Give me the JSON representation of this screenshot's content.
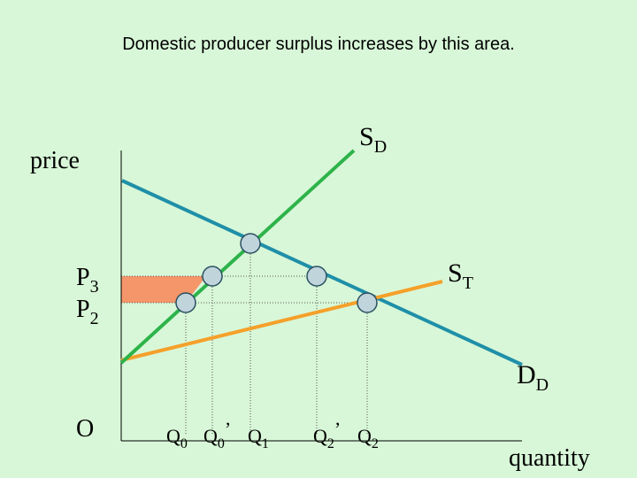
{
  "title": "Domestic producer surplus increases by this area.",
  "axes": {
    "y_label": "price",
    "x_label": "quantity",
    "origin": "O"
  },
  "curves": {
    "domestic_supply": {
      "label": "S",
      "sub": "D",
      "color": "#2db34a"
    },
    "domestic_demand": {
      "label": "D",
      "sub": "D",
      "color": "#1f8fa8"
    },
    "total_supply": {
      "label": "S",
      "sub": "T",
      "color": "#f5a02a"
    }
  },
  "price_labels": {
    "p3": {
      "label": "P",
      "sub": "3"
    },
    "p2": {
      "label": "P",
      "sub": "2"
    }
  },
  "quantity_labels": {
    "q0": {
      "label": "Q",
      "sub": "0"
    },
    "q0_prime": {
      "label": "Q",
      "sub": "0",
      "prime": "’"
    },
    "q1": {
      "label": "Q",
      "sub": "1"
    },
    "q2_prime": {
      "label": "Q",
      "sub": "2",
      "prime": "’"
    },
    "q2": {
      "label": "Q",
      "sub": "2"
    }
  },
  "colors": {
    "surplus_area": "#f5956a",
    "point_fill": "#c0d4dc",
    "point_stroke": "#2a5060",
    "axis": "#000000"
  }
}
